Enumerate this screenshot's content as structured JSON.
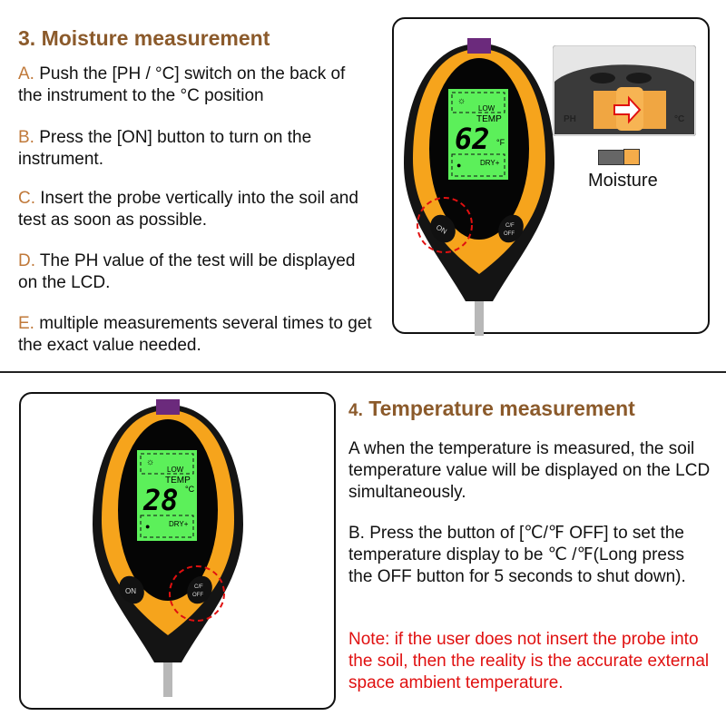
{
  "section3": {
    "heading": "3. Moisture measurement",
    "steps": [
      {
        "letter": "A.",
        "text": " Push the [PH / °C] switch on the back of the instrument to the °C position"
      },
      {
        "letter": "B.",
        "text": " Press the [ON] button to turn on the instrument."
      },
      {
        "letter": "C.",
        "text": " Insert the probe vertically into the soil and test as soon as possible."
      },
      {
        "letter": "D.",
        "text": " The PH value of the test will be displayed on the LCD."
      },
      {
        "letter": "E.",
        "text": " multiple measurements several times to get the exact value needed."
      }
    ],
    "meter": {
      "low": "LOW",
      "temp": "TEMP",
      "value": "62",
      "unit": "°F",
      "dry": "DRY+",
      "on": "ON",
      "cf": "C/F",
      "off": "OFF"
    },
    "switch_label": "Moisture",
    "switch_marks": {
      "left": "PH",
      "right": "°C"
    }
  },
  "section4": {
    "heading_num": "4.",
    "heading": " Temperature measurement",
    "para_a": "A when the temperature is measured, the soil temperature value will be displayed on the LCD simultaneously.",
    "para_b": "B. Press the button of [℃/℉ OFF] to set the temperature display to be ℃ /℉(Long press the OFF button for 5 seconds to shut down).",
    "note": "Note: if the user does not insert the probe into the soil, then the reality is the accurate external space ambient temperature.",
    "meter": {
      "low": "LOW",
      "temp": "TEMP",
      "value": "28",
      "unit": "°C",
      "dry": "DRY+",
      "on": "ON",
      "cf": "C/F",
      "off": "OFF"
    }
  },
  "colors": {
    "heading": "#8b5a2b",
    "letter": "#c0793a",
    "note": "#e01010",
    "lcd": "#5cf05a",
    "body_orange": "#f6a41c"
  }
}
